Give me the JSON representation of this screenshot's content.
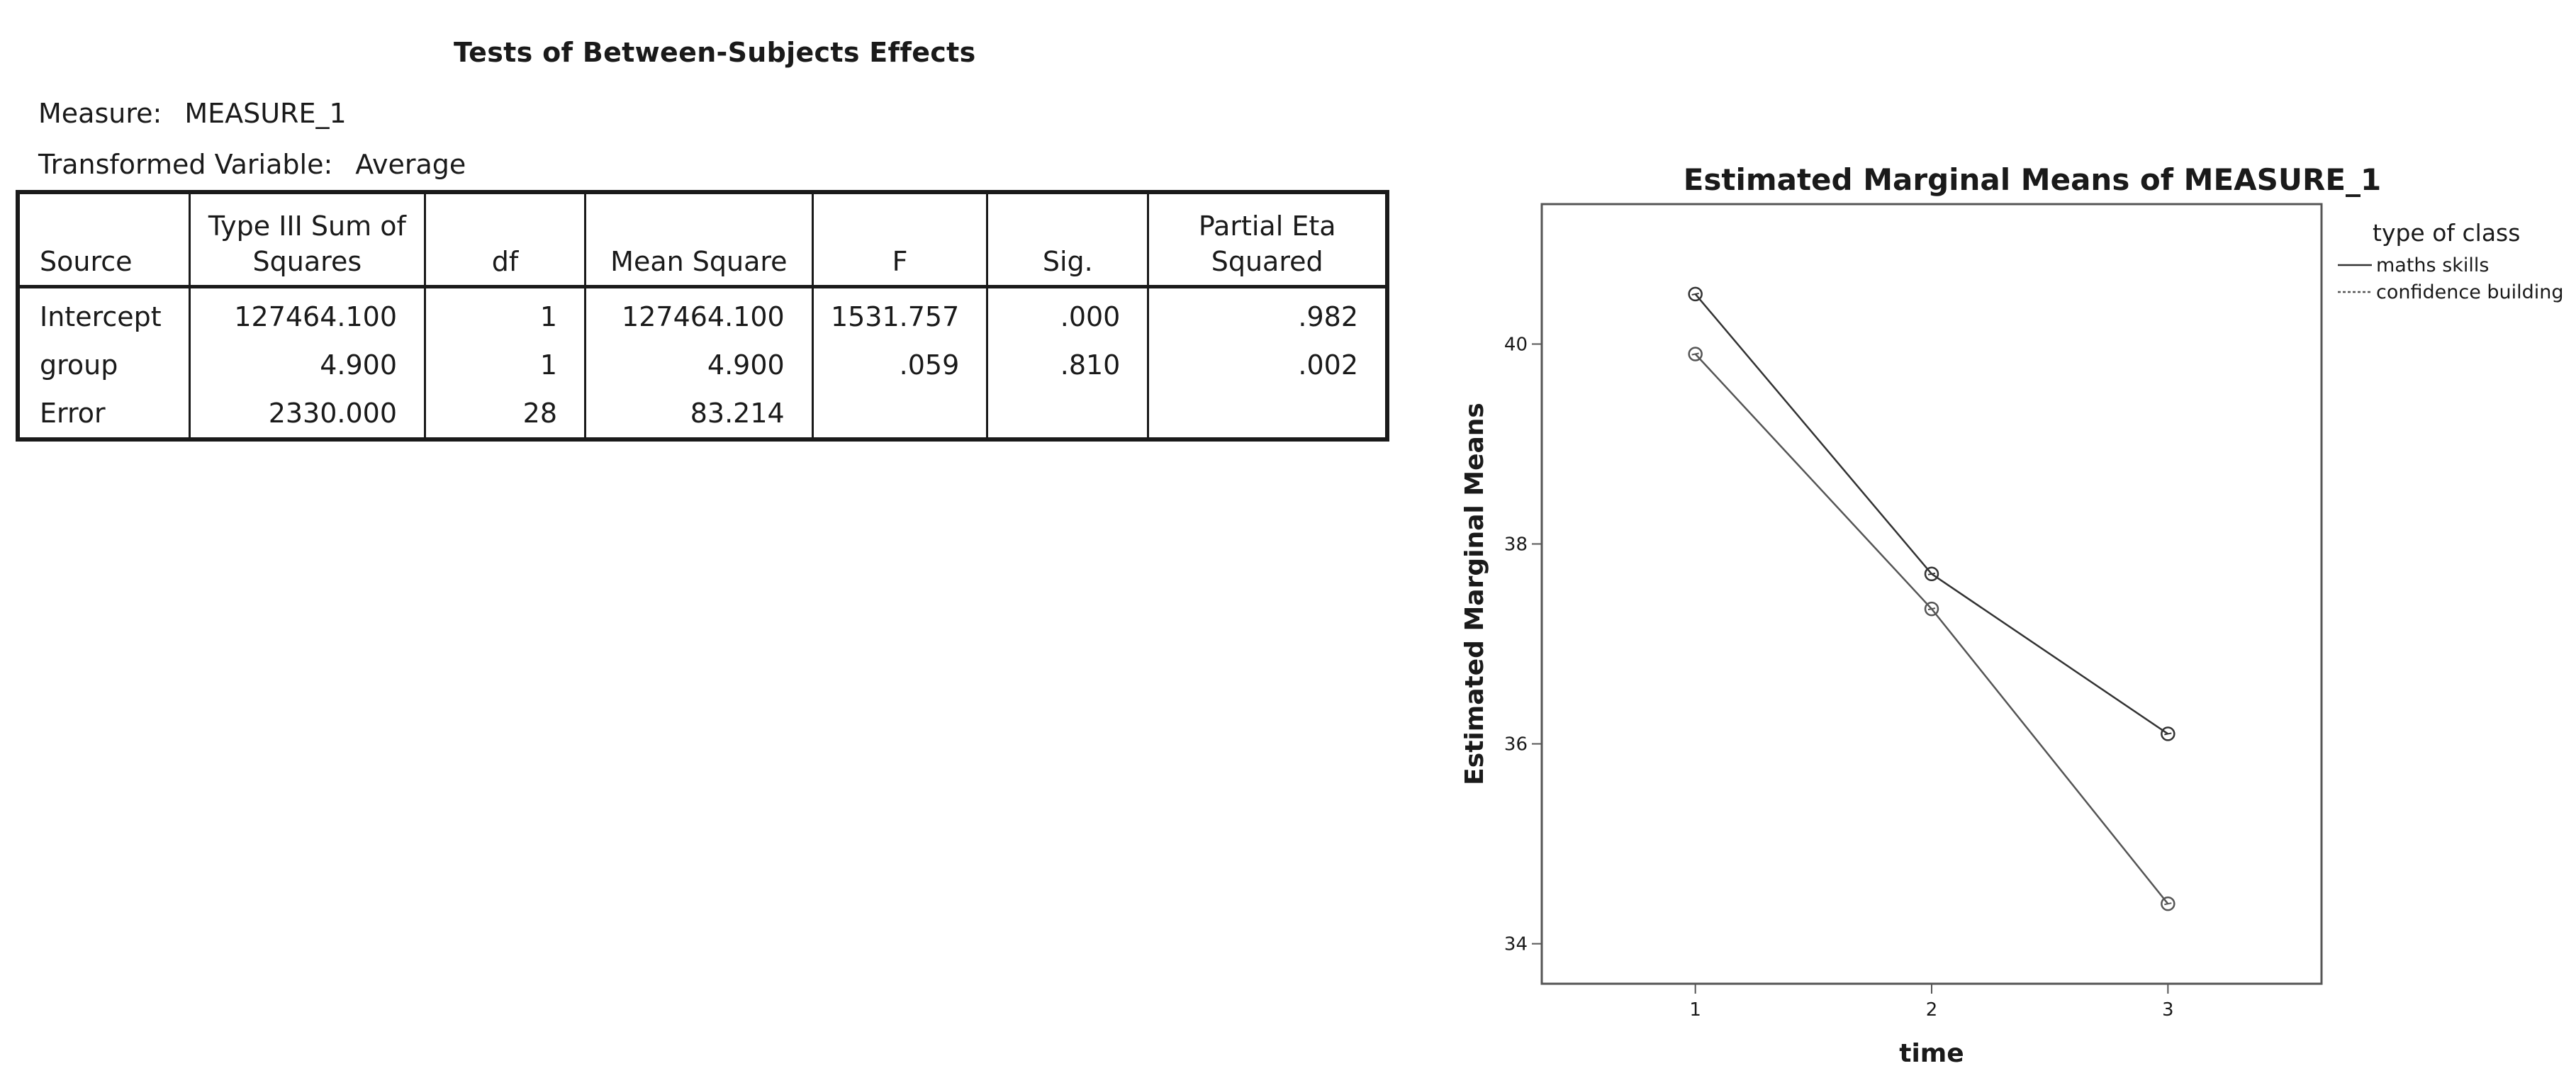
{
  "table": {
    "title": "Tests of Between-Subjects Effects",
    "measure_label": "Measure:",
    "measure_value": "MEASURE_1",
    "transformed_label": "Transformed Variable:",
    "transformed_value": "Average",
    "headers": [
      "Source",
      "Type III Sum of Squares",
      "df",
      "Mean Square",
      "F",
      "Sig.",
      "Partial Eta Squared"
    ],
    "rows": [
      [
        "Intercept",
        "127464.100",
        "1",
        "127464.100",
        "1531.757",
        ".000",
        ".982"
      ],
      [
        "group",
        "4.900",
        "1",
        "4.900",
        ".059",
        ".810",
        ".002"
      ],
      [
        "Error",
        "2330.000",
        "28",
        "83.214",
        "",
        "",
        ""
      ]
    ]
  },
  "chart_data": {
    "type": "line",
    "title": "Estimated Marginal Means of MEASURE_1",
    "xlabel": "time",
    "ylabel": "Estimated Marginal Means",
    "x": [
      1,
      2,
      3
    ],
    "xticks": [
      "1",
      "2",
      "3"
    ],
    "xlim": [
      0.35,
      3.65
    ],
    "yticks": [
      "34",
      "36",
      "38",
      "40"
    ],
    "ylim": [
      33.6,
      41.4
    ],
    "legend_title": "type of class",
    "legend_position": "outside-right",
    "grid": false,
    "series": [
      {
        "name": "maths skills",
        "values": [
          40.5,
          37.7,
          36.1
        ],
        "color": "#333333"
      },
      {
        "name": "confidence building",
        "values": [
          39.9,
          37.35,
          34.4
        ],
        "color": "#555555"
      }
    ]
  }
}
